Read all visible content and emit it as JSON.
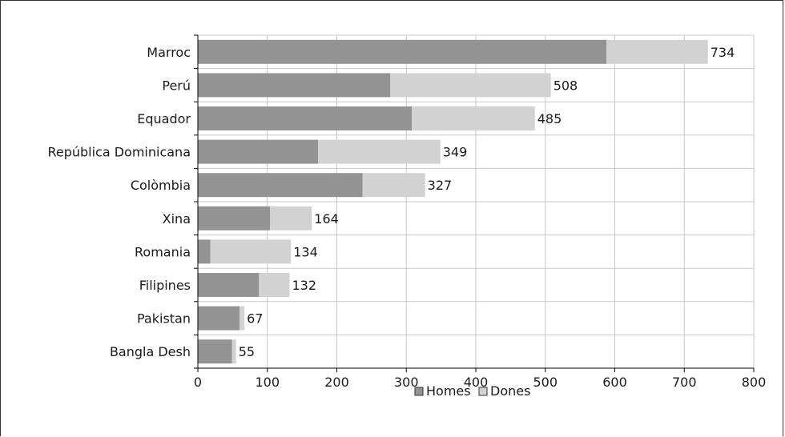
{
  "chart_data": {
    "type": "bar",
    "orientation": "horizontal",
    "stacked": true,
    "categories": [
      "Marroc",
      "Perú",
      "Equador",
      "República Dominicana",
      "Colòmbia",
      "Xina",
      "Romania",
      "Filipines",
      "Pakistan",
      "Bangla Desh"
    ],
    "series": [
      {
        "name": "Homes",
        "values": [
          588,
          277,
          308,
          173,
          237,
          104,
          18,
          88,
          60,
          49
        ]
      },
      {
        "name": "Dones",
        "values": [
          146,
          231,
          177,
          176,
          90,
          60,
          116,
          44,
          7,
          6
        ]
      }
    ],
    "totals": [
      734,
      508,
      485,
      349,
      327,
      164,
      134,
      132,
      67,
      55
    ],
    "total_labels": [
      "734",
      "508",
      "485",
      "349",
      "327",
      "164",
      "134",
      "132",
      "67",
      "55"
    ],
    "xlim": [
      0,
      800
    ],
    "xticks": [
      0,
      100,
      200,
      300,
      400,
      500,
      600,
      700,
      800
    ],
    "xtick_labels": [
      "0",
      "100",
      "200",
      "300",
      "400",
      "500",
      "600",
      "700",
      "800"
    ],
    "grid": true,
    "legend_position": "bottom",
    "legend": [
      "Homes",
      "Dones"
    ],
    "colors": {
      "Homes": "#939393",
      "Dones": "#d2d2d2",
      "grid": "#c8c8c8",
      "axis": "#000000"
    }
  }
}
